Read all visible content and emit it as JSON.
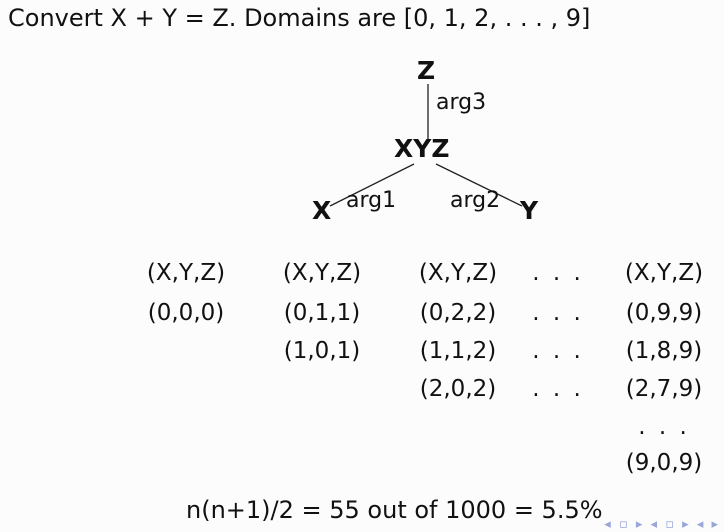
{
  "title": "Convert X + Y = Z. Domains are [0, 1, 2, . . . , 9]",
  "graph": {
    "nodes": {
      "z": "Z",
      "xyz": "XYZ",
      "x": "X",
      "y": "Y"
    },
    "edge_labels": {
      "arg3": "arg3",
      "arg1": "arg1",
      "arg2": "arg2"
    }
  },
  "table": {
    "ellipsis": ". . .",
    "columns": [
      {
        "header": "(X,Y,Z)",
        "cells": [
          "(0,0,0)"
        ]
      },
      {
        "header": "(X,Y,Z)",
        "cells": [
          "(0,1,1)",
          "(1,0,1)"
        ]
      },
      {
        "header": "(X,Y,Z)",
        "cells": [
          "(0,2,2)",
          "(1,1,2)",
          "(2,0,2)"
        ]
      },
      {
        "header": "(X,Y,Z)",
        "cells": [
          "(0,9,9)",
          "(1,8,9)",
          "(2,7,9)",
          "(9,0,9)"
        ]
      }
    ]
  },
  "formula": "n(n+1)/2 = 55 out of 1000 = 5.5%",
  "nav_icons": "◂ ▫ ▸ ◂ ▫ ▸ ◂ ▸"
}
